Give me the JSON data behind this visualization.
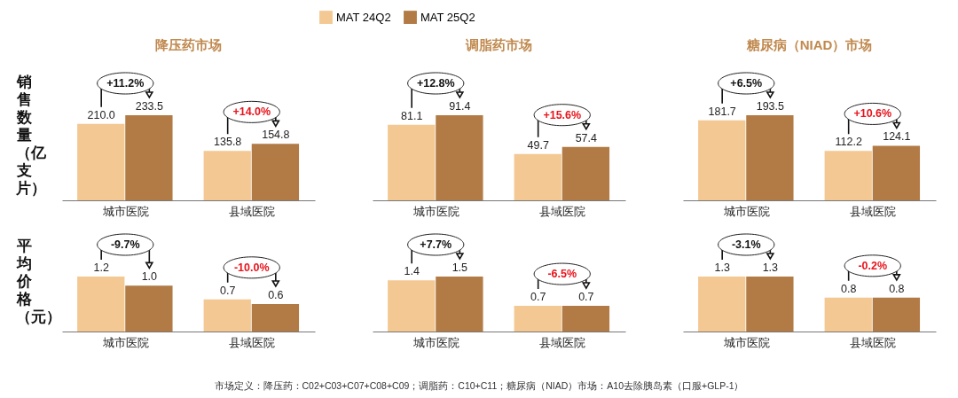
{
  "chart_data": [
    {
      "type": "bar",
      "title": "降压药市场",
      "ylabel": "销售数量（亿支片）",
      "categories": [
        "城市医院",
        "县域医院"
      ],
      "series": [
        {
          "name": "MAT 24Q2",
          "color": "#f3c892",
          "values": [
            210.0,
            135.8
          ],
          "value_labels": [
            "210.0",
            "135.8"
          ]
        },
        {
          "name": "MAT 25Q2",
          "color": "#b27a44",
          "values": [
            233.5,
            154.8
          ],
          "value_labels": [
            "233.5",
            "154.8"
          ]
        }
      ],
      "tick_labels": "x",
      "legend": "top",
      "annotations": [
        "+11.2%",
        "+14.0%"
      ]
    },
    {
      "type": "bar",
      "title": "调脂药市场",
      "categories": [
        "城市医院",
        "县域医院"
      ],
      "series": [
        {
          "color": "#f3c892",
          "values": [
            81.1,
            49.7
          ],
          "value_labels": [
            "81.1",
            "49.7"
          ]
        },
        {
          "color": "#b27a44",
          "values": [
            91.4,
            57.4
          ],
          "value_labels": [
            "91.4",
            "57.4"
          ]
        }
      ],
      "tick_labels": "x",
      "annotations": [
        "+12.8%",
        "+15.6%"
      ]
    },
    {
      "type": "bar",
      "title": "糖尿病（NIAD）市场",
      "categories": [
        "城市医院",
        "县域医院"
      ],
      "series": [
        {
          "color": "#f3c892",
          "values": [
            181.7,
            112.2
          ],
          "value_labels": [
            "181.7",
            "112.2"
          ]
        },
        {
          "color": "#b27a44",
          "values": [
            193.5,
            124.1
          ],
          "value_labels": [
            "193.5",
            "124.1"
          ]
        }
      ],
      "tick_labels": "x",
      "annotations": [
        "+6.5%",
        "+10.6%"
      ]
    },
    {
      "type": "bar",
      "ylabel": "平均价格（元）",
      "categories": [
        "城市医院",
        "县域医院"
      ],
      "series": [
        {
          "color": "#f3c892",
          "values": [
            1.2,
            0.7
          ],
          "value_labels": [
            "1.2",
            "0.7"
          ]
        },
        {
          "color": "#b27a44",
          "values": [
            1.0,
            0.6
          ],
          "value_labels": [
            "1.0",
            "0.6"
          ]
        }
      ],
      "tick_labels": "x",
      "annotations": [
        "-9.7%",
        "-10.0%"
      ]
    },
    {
      "type": "bar",
      "categories": [
        "城市医院",
        "县域医院"
      ],
      "series": [
        {
          "color": "#f3c892",
          "values": [
            1.4,
            0.7
          ],
          "value_labels": [
            "1.4",
            "0.7"
          ]
        },
        {
          "color": "#b27a44",
          "values": [
            1.5,
            0.7
          ],
          "value_labels": [
            "1.5",
            "0.7"
          ]
        }
      ],
      "tick_labels": "x",
      "annotations": [
        "+7.7%",
        "-6.5%",
        "市场定义：降压药：C02+C03+C07+C08+C09；调脂药：C10+C11；糖尿病（NIAD）市场：A10去除胰岛素（口服+GLP-1）"
      ]
    },
    {
      "type": "bar",
      "categories": [
        "城市医院",
        "县域医院"
      ],
      "series": [
        {
          "color": "#f3c892",
          "values": [
            1.3,
            0.8
          ],
          "value_labels": [
            "1.3",
            "0.8"
          ]
        },
        {
          "color": "#b27a44",
          "values": [
            1.3,
            0.8
          ],
          "value_labels": [
            "1.3",
            "0.8"
          ]
        }
      ],
      "tick_labels": "x",
      "annotations": [
        "-3.1%",
        "-0.2%"
      ]
    }
  ]
}
